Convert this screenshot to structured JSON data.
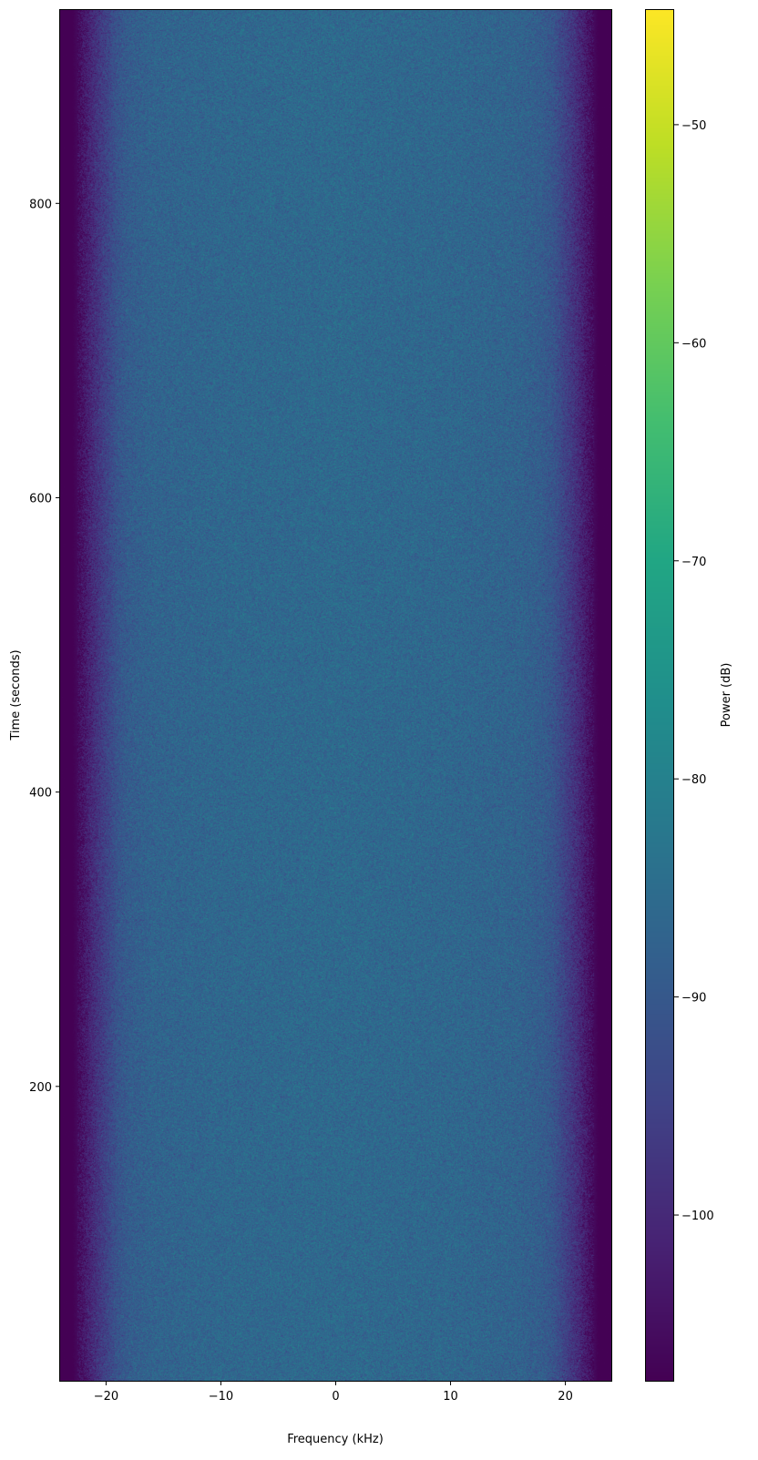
{
  "chart_data": {
    "type": "heatmap",
    "title": "",
    "xlabel": "Frequency (kHz)",
    "ylabel": "Time (seconds)",
    "xlim": [
      -24,
      24
    ],
    "ylim": [
      0,
      932
    ],
    "xticks": [
      -20,
      -10,
      0,
      10,
      20
    ],
    "xtick_labels": [
      "−20",
      "−10",
      "0",
      "10",
      "20"
    ],
    "yticks": [
      200,
      400,
      600,
      800
    ],
    "ytick_labels": [
      "200",
      "400",
      "600",
      "800"
    ],
    "colormap": "viridis",
    "colorbar": {
      "label": "Power (dB)",
      "clim": [
        -107.6,
        -44.7
      ],
      "ticks": [
        -100,
        -90,
        -80,
        -70,
        -60,
        -50
      ],
      "tick_labels": [
        "−100",
        "−90",
        "−80",
        "−70",
        "−60",
        "−50"
      ]
    },
    "mean_power_profile_db": {
      "frequency_khz": [
        -24,
        -23,
        -22,
        -21,
        -20,
        -19,
        -18,
        -16,
        -10,
        0,
        10,
        16,
        18,
        19,
        20,
        21,
        22,
        23,
        24
      ],
      "power_db": [
        -108,
        -108,
        -104,
        -99,
        -95,
        -91,
        -89,
        -87.5,
        -86.5,
        -86,
        -86.5,
        -87.5,
        -89,
        -91,
        -95,
        -99,
        -104,
        -108,
        -108
      ]
    },
    "noise_std_db": 2.5,
    "grid": false
  }
}
